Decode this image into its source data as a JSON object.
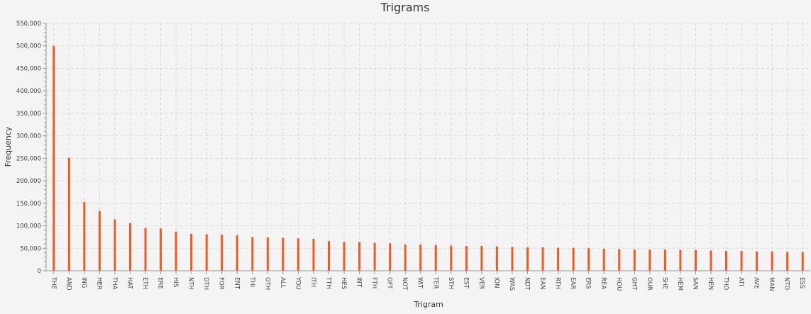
{
  "chart_data": {
    "type": "bar",
    "title": "Trigrams",
    "xlabel": "Trigram",
    "ylabel": "Frequency",
    "ylim": [
      0,
      550000
    ],
    "yticks": [
      0,
      50000,
      100000,
      150000,
      200000,
      250000,
      300000,
      350000,
      400000,
      450000,
      500000,
      550000
    ],
    "ytick_labels": [
      "0",
      "50,000",
      "100,000",
      "150,000",
      "200,000",
      "250,000",
      "300,000",
      "350,000",
      "400,000",
      "450,000",
      "500,000",
      "550,000"
    ],
    "grid": true,
    "legend": "none",
    "bar_color": "#f05a23",
    "categories": [
      "THE",
      "AND",
      "ING",
      "HER",
      "THA",
      "HAT",
      "ETH",
      "ERE",
      "HIS",
      "NTH",
      "DTH",
      "FOR",
      "ENT",
      "THI",
      "OTH",
      "ALL",
      "YOU",
      "ITH",
      "TTH",
      "HES",
      "INT",
      "FTH",
      "OFT",
      "NOT",
      "WIT",
      "TER",
      "STH",
      "EST",
      "VER",
      "ION",
      "WAS",
      "NDT",
      "EAN",
      "RTH",
      "EAR",
      "ERS",
      "REA",
      "HOU",
      "GHT",
      "OUR",
      "SHE",
      "HEM",
      "SAN",
      "HEN",
      "THO",
      "ATI",
      "AVE",
      "MAN",
      "NTO",
      "ESS"
    ],
    "values": [
      500000,
      251000,
      153000,
      133000,
      114000,
      106000,
      95000,
      94000,
      87000,
      82000,
      81000,
      80000,
      79000,
      75000,
      74000,
      73000,
      72000,
      71000,
      66000,
      64000,
      64000,
      62000,
      61000,
      58000,
      58000,
      57000,
      56000,
      55000,
      55000,
      54000,
      53000,
      52000,
      52000,
      51000,
      51000,
      50000,
      49000,
      48000,
      47000,
      47000,
      47000,
      46000,
      46000,
      45000,
      44000,
      44000,
      43000,
      43000,
      42000,
      42000
    ]
  }
}
